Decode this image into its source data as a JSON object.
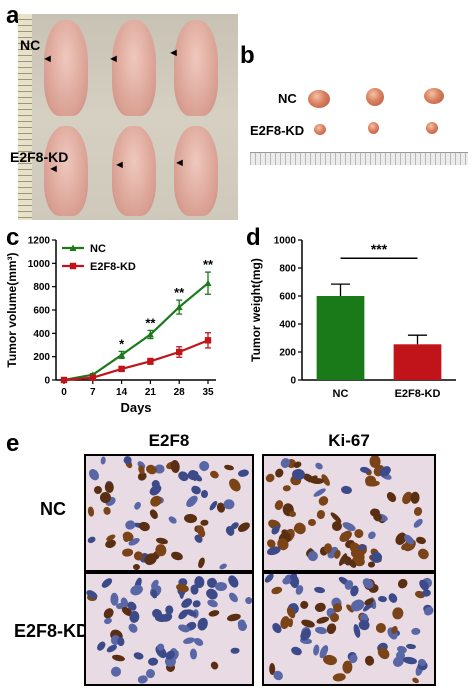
{
  "panels": {
    "a": {
      "letter": "a",
      "group_top": "NC",
      "group_bottom": "E2F8-KD"
    },
    "b": {
      "letter": "b",
      "group_top": "NC",
      "group_bottom": "E2F8-KD"
    },
    "c": {
      "letter": "c"
    },
    "d": {
      "letter": "d"
    },
    "e": {
      "letter": "e",
      "col1": "E2F8",
      "col2": "Ki-67",
      "row1": "NC",
      "row2": "E2F8-KD"
    }
  },
  "chart_data": [
    {
      "type": "line",
      "panel": "c",
      "x": [
        0,
        7,
        14,
        21,
        28,
        35
      ],
      "xlabel": "Days",
      "ylabel": "Tumor volume(mm³)",
      "ylim": [
        0,
        1200
      ],
      "yticks": [
        0,
        200,
        400,
        600,
        800,
        1000,
        1200
      ],
      "legend_position": "top-left",
      "series": [
        {
          "name": "NC",
          "color": "#1a7a1a",
          "values": [
            0,
            45,
            215,
            390,
            625,
            830
          ],
          "errors": [
            0,
            10,
            30,
            35,
            60,
            95
          ]
        },
        {
          "name": "E2F8-KD",
          "color": "#c0141a",
          "values": [
            0,
            20,
            95,
            160,
            240,
            340
          ],
          "errors": [
            0,
            5,
            15,
            25,
            45,
            65
          ]
        }
      ],
      "annotations": [
        {
          "x": 14,
          "text": "*"
        },
        {
          "x": 21,
          "text": "**"
        },
        {
          "x": 28,
          "text": "**"
        },
        {
          "x": 35,
          "text": "**"
        }
      ]
    },
    {
      "type": "bar",
      "panel": "d",
      "categories": [
        "NC",
        "E2F8-KD"
      ],
      "values": [
        600,
        255
      ],
      "errors": [
        85,
        65
      ],
      "colors": [
        "#1a7a1a",
        "#c0141a"
      ],
      "ylabel": "Tumor weight(mg)",
      "ylim": [
        0,
        1000
      ],
      "yticks": [
        0,
        200,
        400,
        600,
        800,
        1000
      ],
      "significance": "***"
    }
  ]
}
